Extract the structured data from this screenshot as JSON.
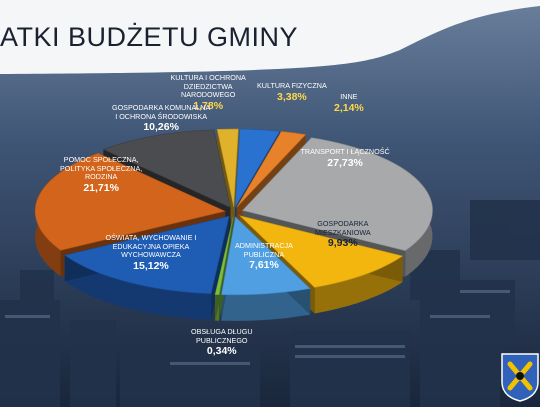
{
  "title": "ATKI BUDŻETU GMINY",
  "chart_data": {
    "type": "pie",
    "title": "ATKI BUDŻETU GMINY",
    "unit": "%",
    "slices": [
      {
        "label": "KULTURA I OCHRONA DZIEDZICTWA NARODOWEGO",
        "value": 1.78,
        "value_label": "1,78%",
        "color": "#e0b12a"
      },
      {
        "label": "KULTURA FIZYCZNA",
        "value": 3.38,
        "value_label": "3,38%",
        "color": "#2a72d0"
      },
      {
        "label": "INNE",
        "value": 2.14,
        "value_label": "2,14%",
        "color": "#e8822a"
      },
      {
        "label": "TRANSPORT I ŁĄCZNOŚĆ",
        "value": 27.73,
        "value_label": "27,73%",
        "color": "#a7a9ab"
      },
      {
        "label": "GOSPODARKA MIESZKANIOWA",
        "value": 9.93,
        "value_label": "9,93%",
        "color": "#f2b60f"
      },
      {
        "label": "ADMINISTRACJA PUBLICZNA",
        "value": 7.61,
        "value_label": "7,61%",
        "color": "#4f9fe2"
      },
      {
        "label": "OBSŁUGA DŁUGU PUBLICZNEGO",
        "value": 0.34,
        "value_label": "0,34%",
        "color": "#7cbf3d"
      },
      {
        "label": "OŚWIATA, WYCHOWANIE I EDUKACYJNA OPIEKA WYCHOWAWCZA",
        "value": 15.12,
        "value_label": "15,12%",
        "color": "#1f5cb4"
      },
      {
        "label": "POMOC SPOŁECZNA, POLITYKA SPOŁECZNA, RODZINA",
        "value": 21.71,
        "value_label": "21,71%",
        "color": "#d2641c"
      },
      {
        "label": "GOSPODARKA KOMUNALNA I OCHRONA ŚRODOWISKA",
        "value": 10.26,
        "value_label": "10,26%",
        "color": "#4b4c50"
      }
    ]
  },
  "labels": [
    {
      "name_lines": [
        "KULTURA I OCHRONA",
        "DZIEDZICTWA",
        "NARODOWEGO"
      ],
      "val": "1,78%",
      "style": "amber"
    },
    {
      "name_lines": [
        "KULTURA FIZYCZNA"
      ],
      "val": "3,38%",
      "style": "amber"
    },
    {
      "name_lines": [
        "INNE"
      ],
      "val": "2,14%",
      "style": "amber"
    },
    {
      "name_lines": [
        "TRANSPORT I ŁĄCZNOŚĆ"
      ],
      "val": "27,73%",
      "style": ""
    },
    {
      "name_lines": [
        "GOSPODARKA",
        "MIESZKANIOWA"
      ],
      "val": "9,93%",
      "style": "dark"
    },
    {
      "name_lines": [
        "ADMINISTRACJA",
        "PUBLICZNA"
      ],
      "val": "7,61%",
      "style": ""
    },
    {
      "name_lines": [
        "OBSŁUGA DŁUGU",
        "PUBLICZNEGO"
      ],
      "val": "0,34%",
      "style": ""
    },
    {
      "name_lines": [
        "OŚWIATA, WYCHOWANIE I",
        "EDUKACYJNA OPIEKA",
        "WYCHOWAWCZA"
      ],
      "val": "15,12%",
      "style": ""
    },
    {
      "name_lines": [
        "POMOC SPOŁECZNA,",
        "POLITYKA SPOŁECZNA,",
        "RODZINA"
      ],
      "val": "21,71%",
      "style": ""
    },
    {
      "name_lines": [
        "GOSPODARKA KOMUNALNA",
        "I OCHRONA ŚRODOWISKA"
      ],
      "val": "10,26%",
      "style": ""
    }
  ]
}
